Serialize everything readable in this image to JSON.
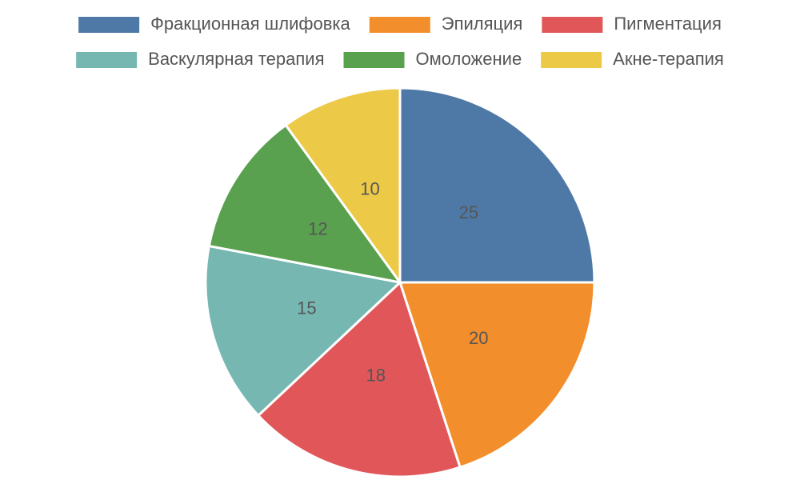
{
  "chart_data": {
    "type": "pie",
    "categories": [
      "Фракционная шлифовка",
      "Эпиляция",
      "Пигментация",
      "Васкулярная терапия",
      "Омоложение",
      "Акне-терапия"
    ],
    "values": [
      25,
      20,
      18,
      15,
      12,
      10
    ],
    "colors": [
      "#4e79a7",
      "#f28e2b",
      "#e15759",
      "#76b7b2",
      "#59a14f",
      "#edc948"
    ],
    "legend": "top"
  }
}
